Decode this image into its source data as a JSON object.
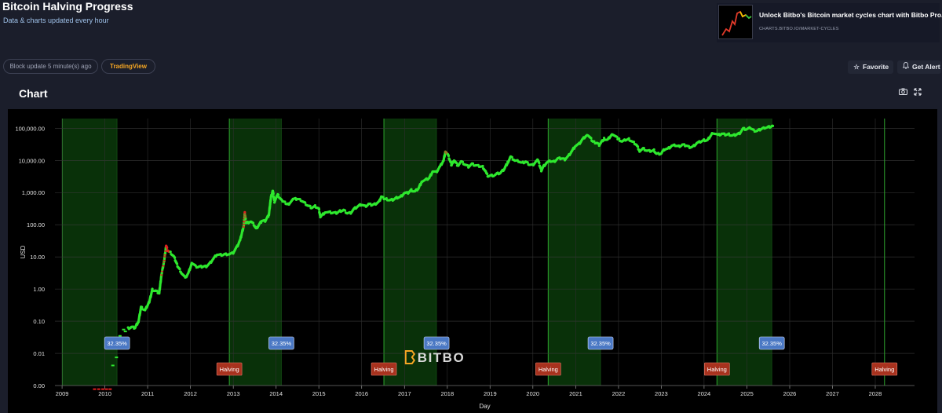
{
  "header": {
    "title": "Bitcoin Halving Progress",
    "subtitle": "Data & charts updated every hour"
  },
  "promo": {
    "title": "Unlock Bitbo's Bitcoin market cycles chart with Bitbo Pro.",
    "url": "CHARTS.BITBO.IO/MARKET-CYCLES"
  },
  "controls": {
    "block_update": "Block update 5 minute(s) ago",
    "tradingview": "TradingView",
    "favorite": "Favorite",
    "get_alert": "Get Alert"
  },
  "icons": {
    "favorite": "star-icon",
    "alert": "bell-icon",
    "camera": "camera-icon",
    "expand": "expand-icon"
  },
  "chart_section": {
    "title": "Chart"
  },
  "colors": {
    "page_bg": "#1b1e2b",
    "plot_bg": "#000000",
    "price_line": "#2ee82e",
    "price_hot": "#e02020",
    "cycle_shade": "#0b3a0b",
    "cycle_border": "#2ea62e",
    "pct_label_bg": "#4a78c4",
    "halving_label_bg": "#a8321e",
    "logo_accent": "#f5a623"
  },
  "chart_data": {
    "type": "scatter",
    "title": "",
    "xlabel": "Day",
    "ylabel": "USD",
    "yscale": "log",
    "ylim": [
      0.001,
      200000
    ],
    "xlim": [
      "2008-11-01",
      "2028-12-01"
    ],
    "y_ticks": [
      {
        "value": 0.001,
        "label": "0.00"
      },
      {
        "value": 0.01,
        "label": "0.01"
      },
      {
        "value": 0.1,
        "label": "0.10"
      },
      {
        "value": 1,
        "label": "1.00"
      },
      {
        "value": 10,
        "label": "10.00"
      },
      {
        "value": 100,
        "label": "100.00"
      },
      {
        "value": 1000,
        "label": "1,000.00"
      },
      {
        "value": 10000,
        "label": "10,000.00"
      },
      {
        "value": 100000,
        "label": "100,000.00"
      }
    ],
    "x_ticks": [
      "2009",
      "2010",
      "2011",
      "2012",
      "2013",
      "2014",
      "2015",
      "2016",
      "2017",
      "2018",
      "2019",
      "2020",
      "2021",
      "2022",
      "2023",
      "2024",
      "2025",
      "2026",
      "2027",
      "2028"
    ],
    "grid": true,
    "legend": "none",
    "watermark": "BITBO",
    "series": [
      {
        "points": [
          [
            "2010-07-18",
            0.06
          ],
          [
            "2010-08-15",
            0.065
          ],
          [
            "2010-09-15",
            0.062
          ],
          [
            "2010-10-15",
            0.1
          ],
          [
            "2010-11-06",
            0.27
          ],
          [
            "2010-12-10",
            0.22
          ],
          [
            "2011-01-15",
            0.4
          ],
          [
            "2011-02-10",
            0.95
          ],
          [
            "2011-03-10",
            0.87
          ],
          [
            "2011-04-10",
            0.75
          ],
          [
            "2011-04-30",
            3
          ],
          [
            "2011-05-20",
            6.8
          ],
          [
            "2011-06-08",
            22
          ],
          [
            "2011-06-20",
            16
          ],
          [
            "2011-07-15",
            13.5
          ],
          [
            "2011-08-15",
            10
          ],
          [
            "2011-09-15",
            5
          ],
          [
            "2011-10-15",
            3.3
          ],
          [
            "2011-11-18",
            2.2
          ],
          [
            "2011-12-15",
            3.2
          ],
          [
            "2012-01-15",
            6.5
          ],
          [
            "2012-02-15",
            5
          ],
          [
            "2012-03-15",
            4.9
          ],
          [
            "2012-04-15",
            5
          ],
          [
            "2012-05-15",
            5.1
          ],
          [
            "2012-06-15",
            6.3
          ],
          [
            "2012-07-15",
            8.8
          ],
          [
            "2012-08-15",
            12
          ],
          [
            "2012-09-15",
            11.5
          ],
          [
            "2012-10-15",
            11.8
          ],
          [
            "2012-11-28",
            12.3
          ],
          [
            "2012-12-31",
            13.5
          ],
          [
            "2013-01-31",
            20
          ],
          [
            "2013-02-28",
            33
          ],
          [
            "2013-03-31",
            92
          ],
          [
            "2013-04-09",
            230
          ],
          [
            "2013-04-20",
            110
          ],
          [
            "2013-05-31",
            128
          ],
          [
            "2013-06-30",
            97
          ],
          [
            "2013-07-15",
            75
          ],
          [
            "2013-08-31",
            130
          ],
          [
            "2013-09-30",
            130
          ],
          [
            "2013-10-31",
            200
          ],
          [
            "2013-11-18",
            700
          ],
          [
            "2013-12-04",
            1150
          ],
          [
            "2013-12-18",
            520
          ],
          [
            "2014-01-15",
            850
          ],
          [
            "2014-02-25",
            530
          ],
          [
            "2014-03-31",
            460
          ],
          [
            "2014-04-15",
            430
          ],
          [
            "2014-05-31",
            625
          ],
          [
            "2014-06-30",
            640
          ],
          [
            "2014-07-31",
            590
          ],
          [
            "2014-08-31",
            480
          ],
          [
            "2014-09-30",
            390
          ],
          [
            "2014-10-31",
            340
          ],
          [
            "2014-11-30",
            375
          ],
          [
            "2014-12-31",
            320
          ],
          [
            "2015-01-14",
            175
          ],
          [
            "2015-02-28",
            255
          ],
          [
            "2015-03-31",
            245
          ],
          [
            "2015-04-30",
            235
          ],
          [
            "2015-05-31",
            230
          ],
          [
            "2015-06-30",
            265
          ],
          [
            "2015-07-31",
            285
          ],
          [
            "2015-08-31",
            230
          ],
          [
            "2015-09-30",
            236
          ],
          [
            "2015-10-31",
            315
          ],
          [
            "2015-11-30",
            375
          ],
          [
            "2015-12-31",
            430
          ],
          [
            "2016-01-31",
            370
          ],
          [
            "2016-02-29",
            435
          ],
          [
            "2016-03-31",
            415
          ],
          [
            "2016-04-30",
            450
          ],
          [
            "2016-05-31",
            530
          ],
          [
            "2016-06-17",
            750
          ],
          [
            "2016-07-09",
            650
          ],
          [
            "2016-07-31",
            625
          ],
          [
            "2016-08-31",
            575
          ],
          [
            "2016-09-30",
            610
          ],
          [
            "2016-10-31",
            700
          ],
          [
            "2016-11-30",
            745
          ],
          [
            "2016-12-31",
            965
          ],
          [
            "2017-01-31",
            970
          ],
          [
            "2017-02-28",
            1190
          ],
          [
            "2017-03-31",
            1080
          ],
          [
            "2017-04-30",
            1350
          ],
          [
            "2017-05-31",
            2300
          ],
          [
            "2017-06-30",
            2500
          ],
          [
            "2017-07-31",
            2850
          ],
          [
            "2017-08-31",
            4700
          ],
          [
            "2017-09-30",
            4340
          ],
          [
            "2017-10-31",
            6450
          ],
          [
            "2017-11-30",
            10000
          ],
          [
            "2017-12-17",
            19500
          ],
          [
            "2018-01-10",
            14000
          ],
          [
            "2018-02-06",
            7000
          ],
          [
            "2018-02-28",
            10300
          ],
          [
            "2018-03-31",
            6900
          ],
          [
            "2018-04-30",
            9200
          ],
          [
            "2018-05-31",
            7500
          ],
          [
            "2018-06-30",
            6400
          ],
          [
            "2018-07-31",
            7700
          ],
          [
            "2018-08-31",
            7000
          ],
          [
            "2018-09-30",
            6600
          ],
          [
            "2018-10-31",
            6300
          ],
          [
            "2018-11-30",
            4000
          ],
          [
            "2018-12-15",
            3200
          ],
          [
            "2019-01-31",
            3450
          ],
          [
            "2019-02-28",
            3850
          ],
          [
            "2019-03-31",
            4100
          ],
          [
            "2019-04-30",
            5300
          ],
          [
            "2019-05-31",
            8500
          ],
          [
            "2019-06-26",
            12900
          ],
          [
            "2019-07-31",
            10000
          ],
          [
            "2019-08-31",
            9600
          ],
          [
            "2019-09-30",
            8300
          ],
          [
            "2019-10-31",
            9150
          ],
          [
            "2019-11-30",
            7550
          ],
          [
            "2019-12-31",
            7200
          ],
          [
            "2020-01-31",
            9350
          ],
          [
            "2020-02-14",
            10300
          ],
          [
            "2020-03-13",
            4900
          ],
          [
            "2020-03-31",
            6450
          ],
          [
            "2020-04-30",
            8650
          ],
          [
            "2020-05-31",
            9450
          ],
          [
            "2020-06-30",
            9150
          ],
          [
            "2020-07-31",
            11350
          ],
          [
            "2020-08-31",
            11650
          ],
          [
            "2020-09-30",
            10800
          ],
          [
            "2020-10-31",
            13800
          ],
          [
            "2020-11-30",
            19700
          ],
          [
            "2020-12-31",
            29000
          ],
          [
            "2021-01-31",
            33100
          ],
          [
            "2021-02-28",
            45200
          ],
          [
            "2021-03-31",
            58900
          ],
          [
            "2021-04-14",
            63500
          ],
          [
            "2021-05-31",
            37300
          ],
          [
            "2021-06-30",
            35000
          ],
          [
            "2021-07-20",
            29800
          ],
          [
            "2021-08-31",
            47100
          ],
          [
            "2021-09-30",
            43800
          ],
          [
            "2021-10-31",
            61300
          ],
          [
            "2021-11-10",
            67500
          ],
          [
            "2021-12-31",
            46300
          ],
          [
            "2022-01-31",
            38500
          ],
          [
            "2022-02-28",
            43200
          ],
          [
            "2022-03-31",
            45500
          ],
          [
            "2022-04-30",
            37700
          ],
          [
            "2022-05-31",
            31800
          ],
          [
            "2022-06-30",
            19900
          ],
          [
            "2022-07-31",
            23300
          ],
          [
            "2022-08-31",
            20000
          ],
          [
            "2022-09-30",
            19400
          ],
          [
            "2022-10-31",
            20500
          ],
          [
            "2022-11-21",
            15800
          ],
          [
            "2022-12-31",
            16500
          ],
          [
            "2023-01-31",
            23100
          ],
          [
            "2023-02-28",
            23100
          ],
          [
            "2023-03-31",
            28500
          ],
          [
            "2023-04-30",
            29200
          ],
          [
            "2023-05-31",
            27200
          ],
          [
            "2023-06-30",
            30500
          ],
          [
            "2023-07-31",
            29200
          ],
          [
            "2023-08-31",
            25900
          ],
          [
            "2023-09-30",
            27000
          ],
          [
            "2023-10-31",
            34500
          ],
          [
            "2023-11-30",
            37700
          ],
          [
            "2023-12-31",
            42300
          ],
          [
            "2024-01-31",
            42600
          ],
          [
            "2024-02-29",
            61200
          ],
          [
            "2024-03-14",
            73000
          ],
          [
            "2024-04-30",
            60600
          ],
          [
            "2024-05-31",
            67500
          ],
          [
            "2024-06-30",
            62700
          ],
          [
            "2024-07-31",
            64600
          ],
          [
            "2024-08-31",
            58900
          ],
          [
            "2024-09-30",
            63300
          ],
          [
            "2024-10-31",
            70200
          ],
          [
            "2024-11-30",
            96400
          ],
          [
            "2024-12-31",
            93400
          ],
          [
            "2025-01-31",
            102400
          ],
          [
            "2025-02-28",
            84300
          ],
          [
            "2025-03-31",
            82500
          ],
          [
            "2025-04-30",
            94200
          ],
          [
            "2025-05-31",
            104600
          ],
          [
            "2025-06-30",
            107100
          ],
          [
            "2025-07-31",
            115700
          ],
          [
            "2025-08-10",
            118000
          ]
        ]
      }
    ],
    "early_points": [
      [
        "2009-10-05",
        0.00077
      ],
      [
        "2009-11-10",
        0.00077
      ],
      [
        "2009-12-15",
        0.00077
      ],
      [
        "2010-01-15",
        0.00077
      ],
      [
        "2010-02-15",
        0.00077
      ],
      [
        "2010-03-10",
        0.0042
      ],
      [
        "2010-04-10",
        0.0075
      ],
      [
        "2010-05-10",
        0.035
      ],
      [
        "2010-06-10",
        0.055
      ],
      [
        "2010-06-25",
        0.048
      ]
    ],
    "cycle_bands": [
      {
        "start": "2009-01-03",
        "end": "2010-04-15",
        "label": "32.35%"
      },
      {
        "start": "2012-11-28",
        "end": "2014-02-15",
        "label": "32.35%"
      },
      {
        "start": "2016-07-09",
        "end": "2017-10-01",
        "label": "32.35%"
      },
      {
        "start": "2020-05-11",
        "end": "2021-08-01",
        "label": "32.35%"
      },
      {
        "start": "2024-04-20",
        "end": "2025-08-01",
        "label": "32.35%"
      }
    ],
    "halvings": [
      {
        "date": "2012-11-28",
        "label": "Halving"
      },
      {
        "date": "2016-07-09",
        "label": "Halving"
      },
      {
        "date": "2020-05-11",
        "label": "Halving"
      },
      {
        "date": "2024-04-20",
        "label": "Halving"
      },
      {
        "date": "2028-03-20",
        "label": "Halving"
      }
    ]
  }
}
